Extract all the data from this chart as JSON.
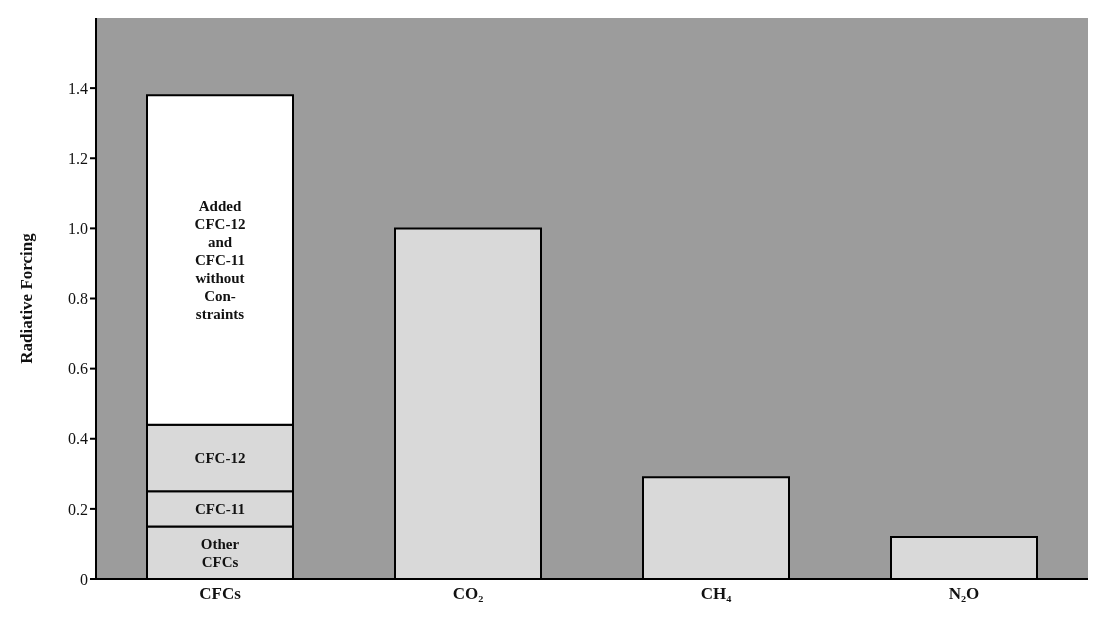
{
  "chart_data": {
    "type": "bar",
    "stacked": true,
    "ylabel": "Radiative Forcing",
    "categories": [
      "CFCs",
      "CO₂",
      "CH₄",
      "N₂O"
    ],
    "series": [
      {
        "color": "#d9d9d9",
        "values": [
          null,
          1.0,
          0.29,
          0.12
        ]
      },
      {
        "name": "Other CFCs",
        "color": "#d9d9d9",
        "values": [
          0.15,
          null,
          null,
          null
        ]
      },
      {
        "name": "CFC-11",
        "color": "#d9d9d9",
        "values": [
          0.1,
          null,
          null,
          null
        ]
      },
      {
        "name": "CFC-12",
        "color": "#d9d9d9",
        "values": [
          0.19,
          null,
          null,
          null
        ]
      },
      {
        "name": "Added CFC-12 and CFC-11 without Con- straints",
        "color": "#ffffff",
        "values": [
          0.94,
          null,
          null,
          null
        ]
      }
    ],
    "ylim": [
      0,
      1.6
    ],
    "yticks": [
      0,
      0.2,
      0.4,
      0.6,
      0.8,
      {
        "value": 1.0,
        "label": "1.0"
      },
      1.2,
      1.4
    ],
    "grid": false,
    "legend": false
  }
}
